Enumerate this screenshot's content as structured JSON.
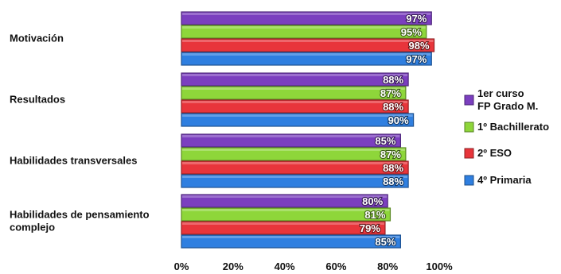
{
  "chart_data": {
    "type": "bar",
    "orientation": "horizontal",
    "categories": [
      [
        "Motivación"
      ],
      [
        "Resultados"
      ],
      [
        "Habilidades transversales"
      ],
      [
        "Habilidades de pensamiento",
        "complejo"
      ]
    ],
    "series": [
      {
        "name": [
          "1er curso",
          "FP Grado M."
        ],
        "color": "#7b3fbf",
        "values": [
          97,
          88,
          85,
          80
        ]
      },
      {
        "name": [
          "1º Bachillerato"
        ],
        "color": "#8ed63a",
        "values": [
          95,
          87,
          87,
          81
        ]
      },
      {
        "name": [
          "2º ESO"
        ],
        "color": "#e8353b",
        "values": [
          98,
          88,
          88,
          79
        ]
      },
      {
        "name": [
          "4º Primaria"
        ],
        "color": "#2f7fe0",
        "values": [
          97,
          90,
          88,
          85
        ]
      }
    ],
    "xlim": [
      0,
      100
    ],
    "ticks": [
      "0%",
      "20%",
      "40%",
      "60%",
      "80%",
      "100%"
    ],
    "tick_values": [
      0,
      20,
      40,
      60,
      80,
      100
    ],
    "value_suffix": "%",
    "grid": "none",
    "legend_position": "right"
  }
}
